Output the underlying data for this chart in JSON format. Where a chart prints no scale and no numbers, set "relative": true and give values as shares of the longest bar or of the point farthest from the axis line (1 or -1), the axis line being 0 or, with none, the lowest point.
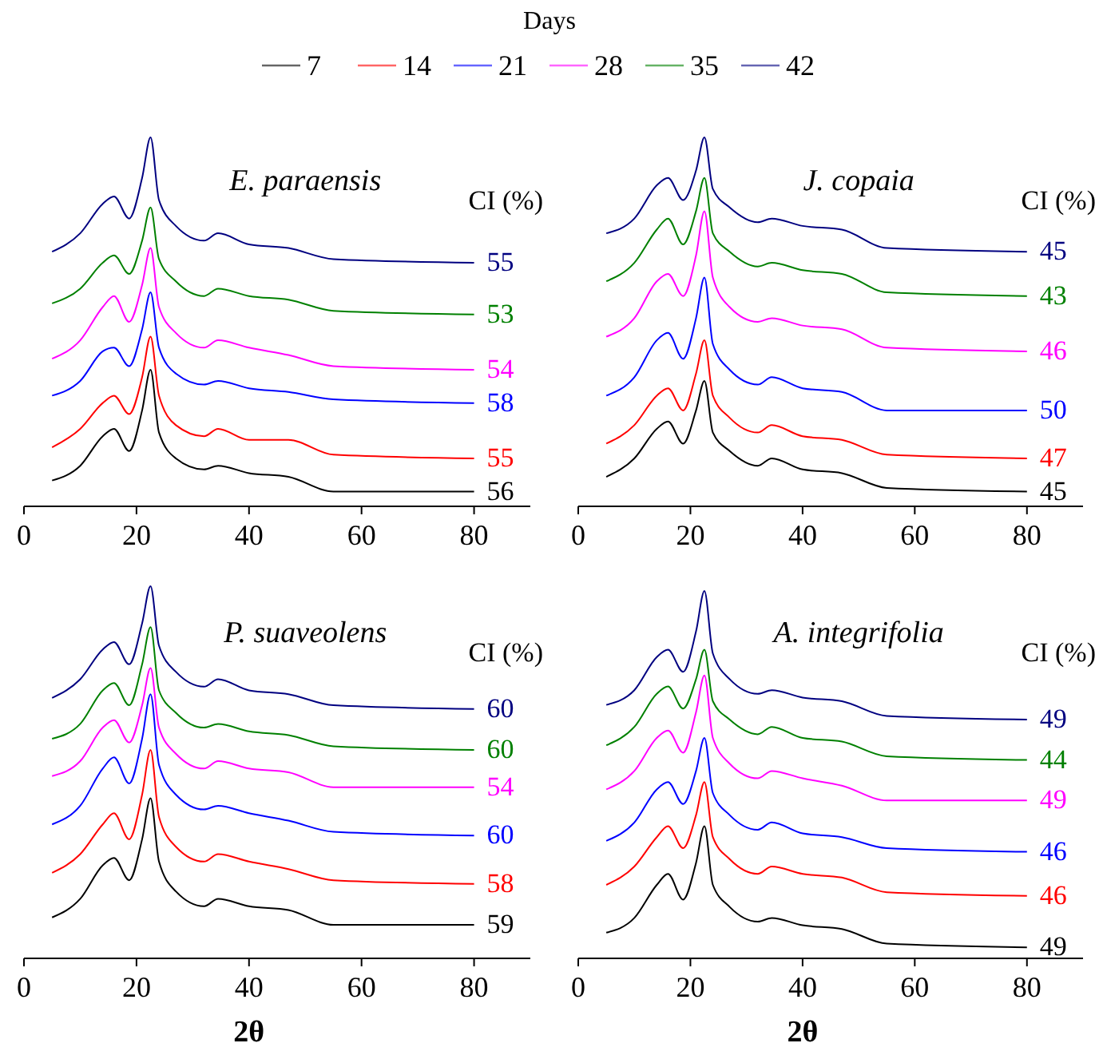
{
  "chart_data": [
    {
      "type": "line",
      "title": "E. paraensis",
      "relative": true,
      "legend": "top",
      "legend_title": "Days",
      "xlim": [
        0,
        90
      ],
      "xticks": [
        0,
        20,
        40,
        60,
        80
      ],
      "x": [
        5,
        10,
        14,
        16,
        18.7,
        21,
        22.5,
        24,
        27,
        32,
        34.5,
        40,
        47,
        55,
        80
      ],
      "series": [
        {
          "name": "7",
          "color": "#000000",
          "values": [
            0.07,
            0.11,
            0.19,
            0.21,
            0.15,
            0.26,
            0.37,
            0.2,
            0.13,
            0.1,
            0.11,
            0.09,
            0.08,
            0.04,
            0.04
          ]
        },
        {
          "name": "14",
          "color": "#ff0000",
          "values": [
            0.16,
            0.21,
            0.28,
            0.3,
            0.25,
            0.35,
            0.46,
            0.3,
            0.22,
            0.19,
            0.21,
            0.18,
            0.18,
            0.14,
            0.13
          ]
        },
        {
          "name": "21",
          "color": "#0000ff",
          "values": [
            0.3,
            0.34,
            0.42,
            0.43,
            0.38,
            0.48,
            0.58,
            0.43,
            0.36,
            0.33,
            0.34,
            0.32,
            0.31,
            0.29,
            0.28
          ]
        },
        {
          "name": "28",
          "color": "#ff00ff",
          "values": [
            0.4,
            0.45,
            0.54,
            0.57,
            0.5,
            0.6,
            0.7,
            0.54,
            0.47,
            0.43,
            0.45,
            0.43,
            0.41,
            0.38,
            0.37
          ]
        },
        {
          "name": "35",
          "color": "#008000",
          "values": [
            0.55,
            0.59,
            0.66,
            0.68,
            0.63,
            0.72,
            0.81,
            0.67,
            0.61,
            0.57,
            0.59,
            0.57,
            0.56,
            0.53,
            0.52
          ]
        },
        {
          "name": "42",
          "color": "#000080",
          "values": [
            0.69,
            0.74,
            0.82,
            0.84,
            0.78,
            0.89,
            1,
            0.83,
            0.76,
            0.72,
            0.74,
            0.71,
            0.7,
            0.67,
            0.66
          ]
        }
      ],
      "annotations": [
        "CI (%)",
        "56",
        "55",
        "58",
        "54",
        "53",
        "55"
      ]
    },
    {
      "type": "line",
      "title": "J. copaia",
      "relative": true,
      "xlim": [
        0,
        90
      ],
      "xticks": [
        0,
        20,
        40,
        60,
        80
      ],
      "x": [
        5,
        10,
        14,
        16,
        18.7,
        21,
        22.5,
        24,
        27,
        32,
        34.5,
        40,
        47,
        55,
        80
      ],
      "series": [
        {
          "color": "#000000",
          "values": [
            0.08,
            0.13,
            0.21,
            0.23,
            0.17,
            0.26,
            0.34,
            0.2,
            0.15,
            0.11,
            0.13,
            0.1,
            0.09,
            0.05,
            0.04
          ]
        },
        {
          "color": "#ff0000",
          "values": [
            0.17,
            0.22,
            0.3,
            0.32,
            0.26,
            0.36,
            0.45,
            0.3,
            0.24,
            0.2,
            0.22,
            0.19,
            0.18,
            0.14,
            0.13
          ]
        },
        {
          "color": "#0000ff",
          "values": [
            0.3,
            0.35,
            0.45,
            0.47,
            0.4,
            0.51,
            0.62,
            0.44,
            0.37,
            0.33,
            0.35,
            0.32,
            0.31,
            0.26,
            0.26
          ]
        },
        {
          "color": "#ff00ff",
          "values": [
            0.46,
            0.51,
            0.61,
            0.63,
            0.57,
            0.68,
            0.8,
            0.62,
            0.54,
            0.5,
            0.51,
            0.49,
            0.48,
            0.43,
            0.42
          ]
        },
        {
          "color": "#008000",
          "values": [
            0.61,
            0.66,
            0.75,
            0.78,
            0.71,
            0.8,
            0.89,
            0.74,
            0.69,
            0.65,
            0.66,
            0.64,
            0.63,
            0.58,
            0.57
          ]
        },
        {
          "color": "#000080",
          "values": [
            0.74,
            0.78,
            0.87,
            0.89,
            0.83,
            0.91,
            1,
            0.86,
            0.81,
            0.77,
            0.78,
            0.76,
            0.75,
            0.7,
            0.69
          ]
        }
      ],
      "annotations": [
        "CI (%)",
        "45",
        "47",
        "50",
        "46",
        "43",
        "45"
      ]
    },
    {
      "type": "line",
      "title": "P. suaveolens",
      "relative": true,
      "xlabel": "2θ",
      "xlim": [
        0,
        90
      ],
      "xticks": [
        0,
        20,
        40,
        60,
        80
      ],
      "x": [
        5,
        10,
        14,
        16,
        18.7,
        21,
        22.5,
        24,
        27,
        32,
        34.5,
        40,
        47,
        55,
        80
      ],
      "series": [
        {
          "color": "#000000",
          "values": [
            0.11,
            0.16,
            0.25,
            0.27,
            0.21,
            0.32,
            0.43,
            0.26,
            0.18,
            0.14,
            0.16,
            0.14,
            0.13,
            0.09,
            0.09
          ]
        },
        {
          "color": "#ff0000",
          "values": [
            0.23,
            0.28,
            0.36,
            0.39,
            0.32,
            0.44,
            0.56,
            0.38,
            0.3,
            0.26,
            0.28,
            0.26,
            0.24,
            0.21,
            0.2
          ]
        },
        {
          "color": "#0000ff",
          "values": [
            0.36,
            0.41,
            0.51,
            0.54,
            0.47,
            0.59,
            0.71,
            0.52,
            0.44,
            0.4,
            0.41,
            0.39,
            0.37,
            0.34,
            0.33
          ]
        },
        {
          "color": "#ff00ff",
          "values": [
            0.49,
            0.53,
            0.62,
            0.64,
            0.58,
            0.68,
            0.78,
            0.62,
            0.55,
            0.51,
            0.53,
            0.51,
            0.5,
            0.46,
            0.46
          ]
        },
        {
          "color": "#008000",
          "values": [
            0.59,
            0.63,
            0.72,
            0.74,
            0.68,
            0.79,
            0.89,
            0.72,
            0.66,
            0.62,
            0.63,
            0.61,
            0.6,
            0.57,
            0.56
          ]
        },
        {
          "color": "#000080",
          "values": [
            0.7,
            0.75,
            0.83,
            0.85,
            0.79,
            0.9,
            1,
            0.84,
            0.77,
            0.73,
            0.75,
            0.72,
            0.71,
            0.68,
            0.67
          ]
        }
      ],
      "annotations": [
        "CI (%)",
        "59",
        "58",
        "60",
        "54",
        "60",
        "60"
      ]
    },
    {
      "type": "line",
      "title": "A. integrifolia",
      "relative": true,
      "xlabel": "2θ",
      "xlim": [
        0,
        90
      ],
      "xticks": [
        0,
        20,
        40,
        60,
        80
      ],
      "x": [
        5,
        10,
        14,
        16,
        18.7,
        21,
        22.5,
        24,
        27,
        32,
        34.5,
        40,
        47,
        55,
        80
      ],
      "series": [
        {
          "color": "#000000",
          "values": [
            0.07,
            0.11,
            0.2,
            0.23,
            0.16,
            0.26,
            0.36,
            0.2,
            0.14,
            0.1,
            0.11,
            0.09,
            0.08,
            0.04,
            0.03
          ]
        },
        {
          "color": "#ff0000",
          "values": [
            0.2,
            0.25,
            0.33,
            0.36,
            0.3,
            0.39,
            0.48,
            0.33,
            0.27,
            0.23,
            0.25,
            0.23,
            0.22,
            0.18,
            0.17
          ]
        },
        {
          "color": "#0000ff",
          "values": [
            0.32,
            0.37,
            0.46,
            0.48,
            0.42,
            0.51,
            0.6,
            0.45,
            0.39,
            0.35,
            0.37,
            0.34,
            0.33,
            0.3,
            0.29
          ]
        },
        {
          "color": "#ff00ff",
          "values": [
            0.46,
            0.51,
            0.6,
            0.62,
            0.56,
            0.67,
            0.77,
            0.6,
            0.53,
            0.49,
            0.51,
            0.49,
            0.47,
            0.43,
            0.43
          ]
        },
        {
          "color": "#008000",
          "values": [
            0.58,
            0.63,
            0.72,
            0.74,
            0.68,
            0.76,
            0.84,
            0.7,
            0.65,
            0.61,
            0.63,
            0.6,
            0.59,
            0.55,
            0.54
          ]
        },
        {
          "color": "#000080",
          "values": [
            0.69,
            0.73,
            0.82,
            0.84,
            0.78,
            0.89,
            1,
            0.83,
            0.76,
            0.72,
            0.73,
            0.71,
            0.7,
            0.66,
            0.65
          ]
        }
      ],
      "annotations": [
        "CI (%)",
        "49",
        "46",
        "46",
        "49",
        "44",
        "49"
      ]
    }
  ]
}
